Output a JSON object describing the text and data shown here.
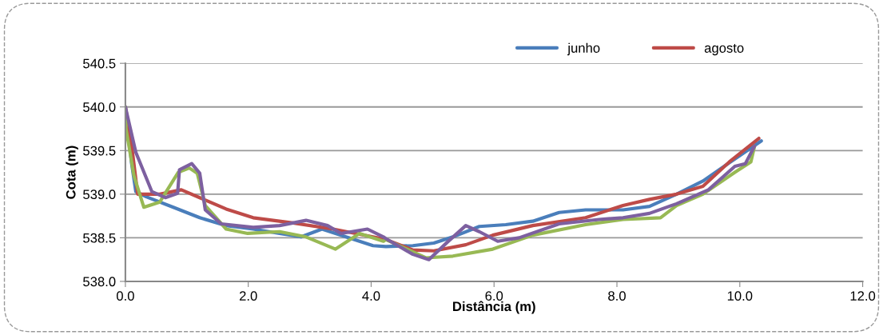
{
  "chart_data": {
    "type": "line",
    "xlabel": "Distância (m)",
    "ylabel": "Cota (m)",
    "xlim": [
      0,
      12
    ],
    "xticks": [
      {
        "value": 0,
        "label": "0.0"
      },
      {
        "value": 2,
        "label": "2.0"
      },
      {
        "value": 4,
        "label": "4.0"
      },
      {
        "value": 6,
        "label": "6.0"
      },
      {
        "value": 8,
        "label": "8.0"
      },
      {
        "value": 10,
        "label": "10.0"
      },
      {
        "value": 12,
        "label": "12.0"
      }
    ],
    "ylim": [
      538.0,
      540.5
    ],
    "yticks": [
      {
        "value": 538.0,
        "label": "538.0"
      },
      {
        "value": 538.5,
        "label": "538.5"
      },
      {
        "value": 539.0,
        "label": "539.0"
      },
      {
        "value": 539.5,
        "label": "539.5"
      },
      {
        "value": 540.0,
        "label": "540.0"
      },
      {
        "value": 540.5,
        "label": "540.5"
      }
    ],
    "grid": "y",
    "legend": "top right",
    "marker": "none",
    "line_style": "solid",
    "series": [
      {
        "name": "junho",
        "color": "#4a7ebb",
        "x": [
          0,
          0.1,
          0.17,
          0.34,
          0.78,
          1.21,
          1.64,
          2.08,
          2.51,
          2.86,
          3.2,
          3.59,
          4.03,
          4.24,
          4.68,
          5.02,
          5.33,
          5.76,
          6.19,
          6.63,
          7.06,
          7.49,
          8.1,
          8.53,
          8.97,
          9.4,
          9.83,
          10.35
        ],
        "values": [
          540.0,
          539.36,
          539.03,
          538.97,
          538.85,
          538.73,
          538.64,
          538.6,
          538.55,
          538.51,
          538.6,
          538.51,
          538.41,
          538.4,
          538.41,
          538.44,
          538.51,
          538.63,
          538.65,
          538.69,
          538.79,
          538.82,
          538.82,
          538.86,
          539.0,
          539.15,
          539.36,
          539.61
        ]
      },
      {
        "name": "agosto",
        "color": "#be4b48",
        "x": [
          0,
          0.1,
          0.2,
          0.56,
          0.91,
          1.21,
          1.64,
          2.08,
          2.73,
          3.38,
          4.03,
          4.24,
          4.68,
          5.02,
          5.54,
          5.98,
          6.63,
          7.49,
          8.1,
          8.53,
          8.97,
          9.4,
          9.83,
          10.31
        ],
        "values": [
          540.0,
          539.57,
          539.0,
          539.0,
          539.05,
          538.96,
          538.83,
          538.73,
          538.67,
          538.6,
          538.51,
          538.48,
          538.36,
          538.35,
          538.42,
          538.53,
          538.64,
          538.73,
          538.87,
          538.94,
          539.0,
          539.09,
          539.37,
          539.64
        ]
      },
      {
        "color": "#98b954",
        "x": [
          0,
          0.01,
          0.14,
          0.3,
          0.56,
          0.86,
          1.04,
          1.17,
          1.3,
          1.64,
          1.99,
          2.51,
          2.94,
          3.42,
          3.81,
          4.2,
          4.24,
          4.89,
          5.33,
          5.98,
          6.63,
          7.49,
          8.1,
          8.71,
          8.97,
          9.4,
          9.92,
          10.18,
          10.24
        ],
        "values": [
          540.0,
          539.75,
          539.21,
          538.85,
          538.91,
          539.25,
          539.3,
          539.24,
          538.87,
          538.6,
          538.55,
          538.57,
          538.51,
          538.37,
          538.55,
          538.46,
          538.48,
          538.27,
          538.29,
          538.37,
          538.53,
          538.65,
          538.71,
          538.73,
          538.87,
          539.0,
          539.25,
          539.37,
          539.55
        ]
      },
      {
        "color": "#7d60a0",
        "x": [
          0,
          0.17,
          0.43,
          0.65,
          0.85,
          0.88,
          1.08,
          1.21,
          1.3,
          1.56,
          2.08,
          2.51,
          2.94,
          3.29,
          3.51,
          3.94,
          4.2,
          4.24,
          4.68,
          4.94,
          5.24,
          5.54,
          5.76,
          6.06,
          6.41,
          7.06,
          7.71,
          8.1,
          8.53,
          8.97,
          9.49,
          9.92,
          10.09,
          10.24
        ],
        "values": [
          540.0,
          539.48,
          539.03,
          538.96,
          539.01,
          539.28,
          539.35,
          539.24,
          538.82,
          538.66,
          538.62,
          538.64,
          538.7,
          538.64,
          538.55,
          538.6,
          538.51,
          538.49,
          538.31,
          538.25,
          538.45,
          538.64,
          538.57,
          538.46,
          538.5,
          538.66,
          538.71,
          538.73,
          538.78,
          538.89,
          539.05,
          539.32,
          539.35,
          539.55
        ]
      }
    ]
  }
}
